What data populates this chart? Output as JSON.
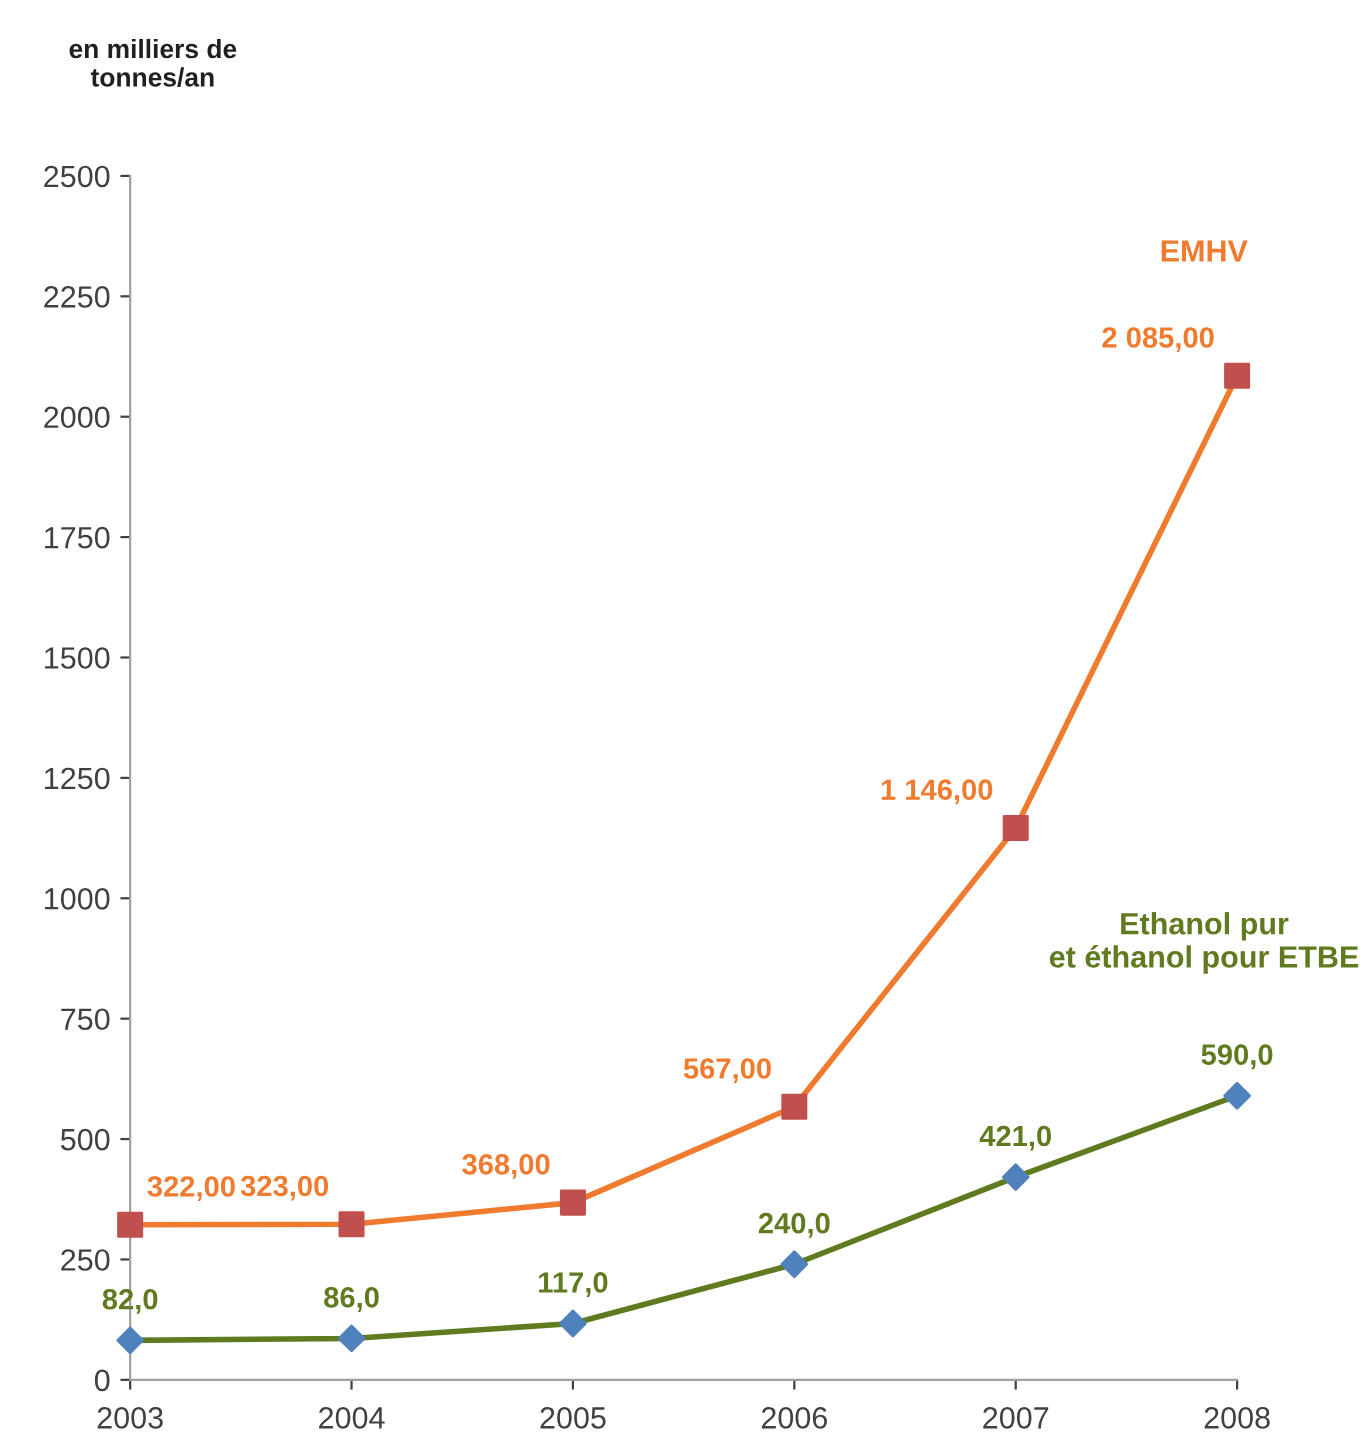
{
  "chart_data": {
    "type": "line",
    "ylabel": "en milliers de\ntonnes/an",
    "categories": [
      "2003",
      "2004",
      "2005",
      "2006",
      "2007",
      "2008"
    ],
    "series": [
      {
        "name": "EMHV",
        "color": "#f07a2e",
        "colors": [
          "#c0504d",
          "#c0504d",
          "#c0504d",
          "#c0504d",
          "#c0504d",
          "#c0504d"
        ],
        "marker": "square",
        "values": [
          322,
          323,
          368,
          567,
          1146,
          2085
        ],
        "value_labels": [
          "322,00",
          "323,00",
          "368,00",
          "567,00",
          "1 146,00",
          "2 085,00"
        ]
      },
      {
        "name": "Ethanol pur\net éthanol pour ETBE",
        "color": "#5f7a1f",
        "colors": [
          "#4f81bd",
          "#4f81bd",
          "#4f81bd",
          "#4f81bd",
          "#4f81bd",
          "#4f81bd"
        ],
        "marker": "diamond",
        "values": [
          82,
          86,
          117,
          240,
          421,
          590
        ],
        "value_labels": [
          "82,0",
          "86,0",
          "117,0",
          "240,0",
          "421,0",
          "590,0"
        ]
      }
    ],
    "ylim": [
      0,
      2500
    ],
    "yticks": [
      0,
      250,
      500,
      750,
      1000,
      1250,
      1500,
      1750,
      2000,
      2250,
      2500
    ],
    "grid": false,
    "legend": false
  }
}
